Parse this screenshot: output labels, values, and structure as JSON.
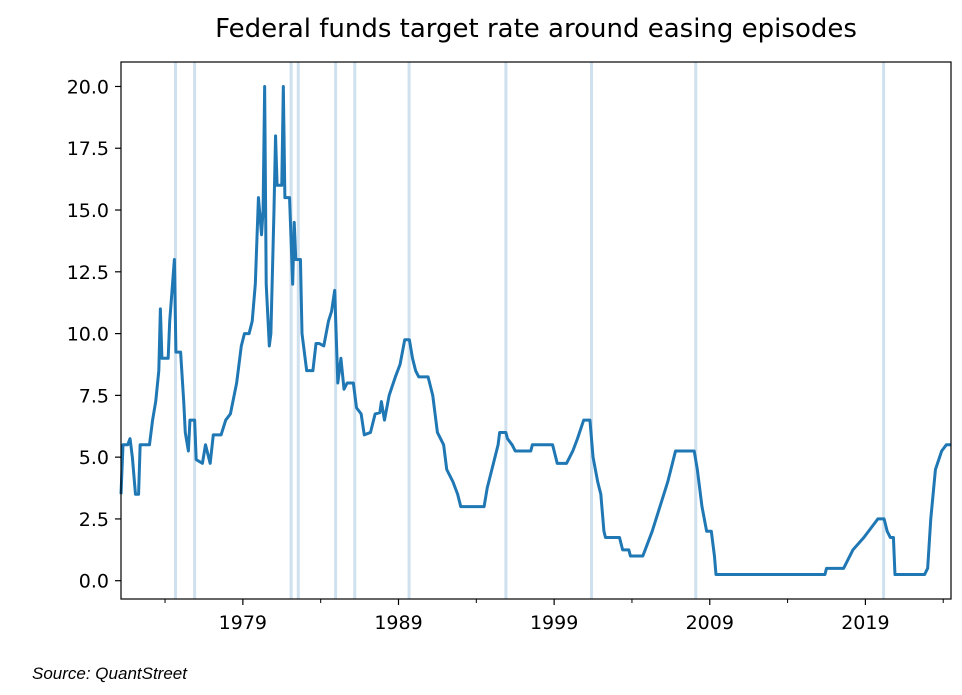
{
  "chart_data": {
    "type": "line",
    "title": "Federal funds target rate around easing episodes",
    "source": "Source: QuantStreet",
    "xlim": [
      1971.17,
      2024.5
    ],
    "ylim": [
      -0.74,
      20.99
    ],
    "xticks": [
      1979,
      1989,
      1999,
      2009,
      2019
    ],
    "xminorticks": [
      1974,
      1984,
      1994,
      2004,
      2014,
      2024
    ],
    "yticks": [
      {
        "value": 0,
        "label": "0.0"
      },
      2.5,
      {
        "value": 5,
        "label": "5.0"
      },
      7.5,
      {
        "value": 10,
        "label": "10.0"
      },
      12.5,
      {
        "value": 15,
        "label": "15.0"
      },
      17.5,
      {
        "value": 20,
        "label": "20.0"
      }
    ],
    "easing_episodes": [
      1974.67,
      1975.9,
      1982.1,
      1982.56,
      1984.96,
      1986.19,
      1989.68,
      1995.9,
      2001.4,
      2008.1,
      2020.17
    ],
    "easing_color": "#cfe0ee",
    "series": [
      {
        "color": "#1f77b4",
        "x": [
          1971.17,
          1971.3,
          1971.6,
          1971.75,
          1971.9,
          1972.1,
          1972.3,
          1972.4,
          1973.0,
          1973.2,
          1973.4,
          1973.6,
          1973.7,
          1973.8,
          1974.2,
          1974.3,
          1974.6,
          1974.7,
          1975.0,
          1975.2,
          1975.3,
          1975.5,
          1975.6,
          1975.9,
          1976.0,
          1976.4,
          1976.6,
          1976.9,
          1977.1,
          1977.6,
          1977.9,
          1978.2,
          1978.6,
          1978.9,
          1979.1,
          1979.4,
          1979.6,
          1979.8,
          1980.0,
          1980.2,
          1980.3,
          1980.4,
          1980.5,
          1980.7,
          1980.8,
          1981.0,
          1981.1,
          1981.2,
          1981.5,
          1981.6,
          1981.7,
          1982.0,
          1982.2,
          1982.3,
          1982.4,
          1982.7,
          1982.8,
          1982.9,
          1983.1,
          1983.5,
          1983.7,
          1983.9,
          1984.2,
          1984.5,
          1984.7,
          1984.9,
          1985.1,
          1985.3,
          1985.5,
          1985.7,
          1986.1,
          1986.3,
          1986.6,
          1986.8,
          1987.2,
          1987.5,
          1987.8,
          1987.9,
          1988.1,
          1988.4,
          1988.8,
          1989.1,
          1989.4,
          1989.7,
          1989.9,
          1990.1,
          1990.3,
          1990.9,
          1991.2,
          1991.5,
          1991.9,
          1992.1,
          1992.5,
          1992.8,
          1993.0,
          1994.5,
          1994.7,
          1994.9,
          1995.2,
          1995.4,
          1995.5,
          1995.9,
          1996.0,
          1996.3,
          1996.5,
          1997.5,
          1997.6,
          1998.9,
          1999.1,
          1999.2,
          1999.8,
          2000.2,
          2000.5,
          2000.9,
          2001.3,
          2001.5,
          2001.8,
          2002.0,
          2002.2,
          2002.3,
          2003.2,
          2003.4,
          2003.8,
          2003.9,
          2004.7,
          2005.3,
          2006.3,
          2006.8,
          2008.0,
          2008.2,
          2008.5,
          2008.8,
          2009.1,
          2009.3,
          2009.4,
          2016.4,
          2016.5,
          2017.6,
          2018.2,
          2018.9,
          2019.5,
          2019.8,
          2020.2,
          2020.4,
          2020.6,
          2020.8,
          2020.9,
          2022.8,
          2023.0,
          2023.2,
          2023.5,
          2023.9,
          2024.2,
          2024.5
        ],
        "values": [
          3.5,
          5.5,
          5.5,
          5.75,
          5.0,
          3.5,
          3.5,
          5.5,
          5.5,
          6.5,
          7.25,
          8.5,
          11.0,
          9.0,
          9.0,
          10.5,
          13.0,
          9.25,
          9.25,
          7.25,
          6.0,
          5.25,
          6.5,
          6.5,
          4.9,
          4.75,
          5.5,
          4.75,
          5.9,
          5.9,
          6.5,
          6.75,
          8.0,
          9.5,
          10.0,
          10.0,
          10.5,
          12.0,
          15.5,
          14.0,
          15.0,
          20.0,
          12.0,
          9.5,
          10.0,
          15.0,
          18.0,
          16.0,
          16.0,
          20.0,
          15.5,
          15.5,
          12.0,
          14.5,
          13.0,
          13.0,
          10.0,
          9.5,
          8.5,
          8.5,
          9.6,
          9.6,
          9.5,
          10.5,
          10.9,
          11.75,
          8.0,
          9.0,
          7.75,
          8.0,
          8.0,
          7.0,
          6.75,
          5.9,
          6.0,
          6.75,
          6.8,
          7.25,
          6.5,
          7.5,
          8.25,
          8.75,
          9.75,
          9.75,
          9.0,
          8.5,
          8.25,
          8.25,
          7.5,
          6.0,
          5.5,
          4.5,
          4.0,
          3.5,
          3.0,
          3.0,
          3.75,
          4.25,
          5.0,
          5.5,
          6.0,
          6.0,
          5.75,
          5.5,
          5.25,
          5.25,
          5.5,
          5.5,
          5.0,
          4.75,
          4.75,
          5.25,
          5.75,
          6.5,
          6.5,
          5.0,
          4.0,
          3.5,
          2.0,
          1.75,
          1.75,
          1.25,
          1.25,
          1.0,
          1.0,
          2.0,
          4.0,
          5.25,
          5.25,
          4.5,
          3.0,
          2.0,
          2.0,
          1.0,
          0.25,
          0.25,
          0.5,
          0.5,
          1.25,
          1.75,
          2.25,
          2.5,
          2.5,
          2.0,
          1.75,
          1.75,
          0.25,
          0.25,
          0.5,
          2.5,
          4.5,
          5.25,
          5.5,
          5.5
        ]
      }
    ]
  }
}
